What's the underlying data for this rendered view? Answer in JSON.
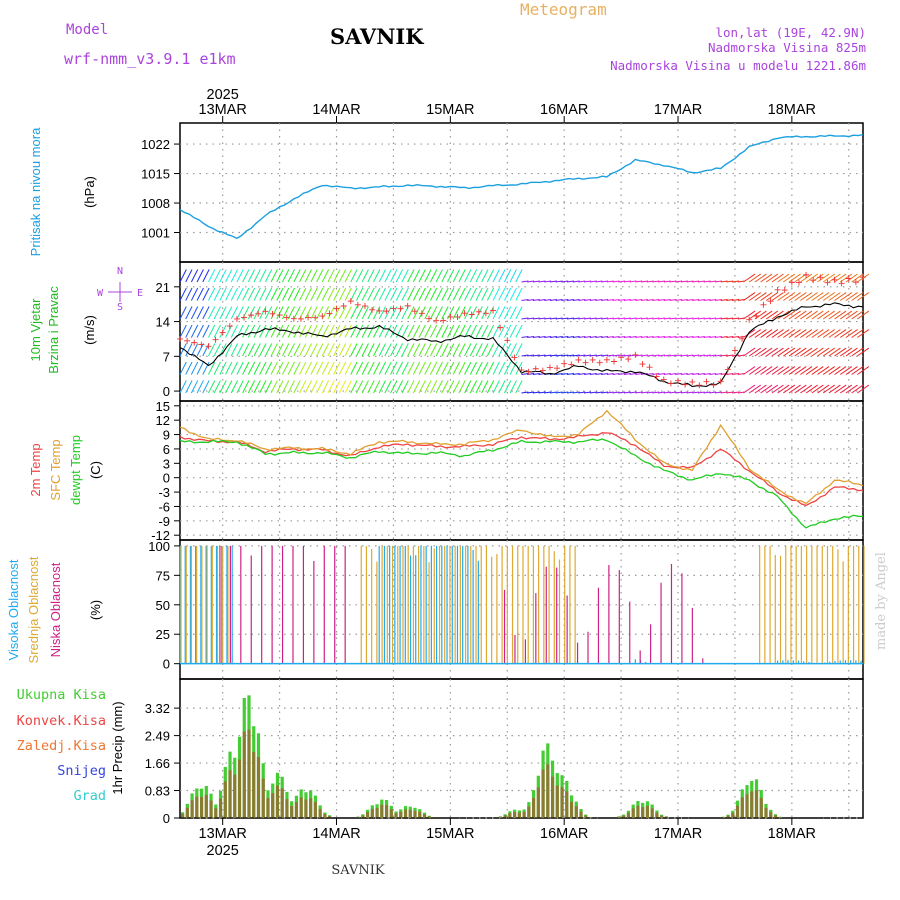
{
  "header": {
    "model_label": "Model",
    "model_name": "wrf-nmm_v3.9.1 e1km",
    "station": "SAVNIK",
    "meteogram": "Meteogram",
    "lonlat": "lon,lat (19E, 42.9N)",
    "altitude": "Nadmorska Visina 825m",
    "model_altitude": "Nadmorska Visina u modelu 1221.86m"
  },
  "footer": {
    "station": "SAVNIK",
    "watermark": "made by Angel"
  },
  "colors": {
    "pressure": "#1ca0e0",
    "wind_label": "#22bb22",
    "t2m": "#ee4444",
    "sfc": "#e0a030",
    "dewpt": "#22cc22",
    "high_cloud": "#22aaee",
    "mid_cloud": "#ddaa33",
    "low_cloud": "#cc2288",
    "total_precip": "#44cc33",
    "conv_precip": "#ee4444",
    "frz_precip": "#ee7733",
    "snow": "#3344dd",
    "hail": "#33cccc",
    "labels_purple": "#aa44dd",
    "meteogram_title": "#e8b060"
  },
  "chart_data": [
    {
      "type": "line",
      "panel": "pressure",
      "ylabel_1": "Pritisak na nivou mora",
      "ylabel_2": "(hPa)",
      "ylim": [
        994,
        1027
      ],
      "yticks": [
        "1001",
        "1008",
        "1015",
        "1022"
      ],
      "x_hours": [
        0,
        6,
        12,
        18,
        24,
        30,
        36,
        42,
        48,
        54,
        60,
        66,
        72,
        78,
        84,
        90,
        96,
        102,
        108,
        114,
        120,
        126,
        132,
        138,
        144
      ],
      "values": [
        1006.5,
        1002.5,
        999.5,
        1005,
        1009,
        1012.3,
        1011.5,
        1011.8,
        1012.2,
        1012.0,
        1011.6,
        1012.1,
        1012.5,
        1013.2,
        1013.8,
        1014.2,
        1018.2,
        1017.0,
        1015.2,
        1016.2,
        1021.3,
        1023.5,
        1023.8,
        1023.9,
        1024.1
      ],
      "xticks": [
        "13MAR",
        "14MAR",
        "15MAR",
        "16MAR",
        "17MAR",
        "18MAR"
      ],
      "year": "2025"
    },
    {
      "type": "line",
      "panel": "wind",
      "ylabel_1": "10m Vjetar",
      "ylabel_2": "Brzina i Pravac",
      "ylabel_3": "(m/s)",
      "compass": [
        "N",
        "S",
        "E",
        "W"
      ],
      "ylim": [
        -2,
        26
      ],
      "yticks": [
        "0",
        "7",
        "14",
        "21"
      ],
      "x_hours": [
        0,
        6,
        12,
        18,
        24,
        30,
        36,
        42,
        48,
        54,
        60,
        66,
        72,
        78,
        84,
        90,
        96,
        102,
        108,
        114,
        120,
        126,
        132,
        138,
        144
      ],
      "speed": [
        9,
        5,
        11,
        12.5,
        12,
        11,
        12.5,
        13,
        10.5,
        10,
        11,
        10.5,
        4,
        3.5,
        5,
        4,
        4,
        2,
        1,
        1.5,
        12,
        15,
        17,
        17.5,
        17
      ],
      "gust": [
        10.5,
        9,
        14.5,
        16,
        14.5,
        15,
        18,
        16,
        17,
        14,
        15.5,
        16,
        4,
        4.5,
        6,
        6,
        7,
        2,
        1.5,
        1.6,
        14,
        20,
        23,
        22,
        22.5
      ]
    },
    {
      "type": "line",
      "panel": "temperature",
      "ylabel_1": "2m Temp",
      "ylabel_2": "SFC Temp",
      "ylabel_3": "dewpt Temp",
      "ylabel_4": "(C)",
      "ylim": [
        -13,
        16
      ],
      "yticks": [
        "15",
        "12",
        "9",
        "6",
        "3",
        "0",
        "-3",
        "-6",
        "-9",
        "-12"
      ],
      "x_hours": [
        0,
        6,
        12,
        18,
        24,
        30,
        36,
        42,
        48,
        54,
        60,
        66,
        72,
        78,
        84,
        90,
        96,
        102,
        108,
        114,
        120,
        126,
        132,
        138,
        144
      ],
      "series": [
        {
          "name": "2m Temp",
          "values": [
            8.5,
            7.6,
            7.5,
            5.5,
            6,
            5.8,
            4.5,
            6.5,
            7,
            6.5,
            6.5,
            7,
            8.5,
            8,
            8.5,
            9.5,
            6.8,
            2.5,
            2,
            6,
            1.5,
            -3,
            -6,
            -2,
            -2.5
          ]
        },
        {
          "name": "SFC Temp",
          "values": [
            10.5,
            8,
            7.8,
            6,
            6.2,
            6,
            5,
            7.5,
            7.5,
            7,
            7,
            8,
            10,
            8.5,
            9,
            14,
            8,
            3,
            1.5,
            11,
            2,
            -2.5,
            -5.5,
            -0.5,
            -1.5
          ]
        },
        {
          "name": "dewpt Temp",
          "values": [
            7.5,
            7.5,
            7.5,
            5,
            5.2,
            5.2,
            4.2,
            5.5,
            5,
            5.2,
            4.6,
            5.8,
            7.5,
            7.5,
            7.5,
            8,
            4.5,
            1.5,
            -0.5,
            1,
            -0.5,
            -4,
            -10.5,
            -8.5,
            -8
          ]
        }
      ]
    },
    {
      "type": "bar",
      "panel": "clouds",
      "ylabel_1": "Visoka Oblacnost",
      "ylabel_2": "Srednja Oblacnost",
      "ylabel_3": "Niska Oblacnost",
      "ylabel_4": "(%)",
      "ylim": [
        0,
        100
      ],
      "yticks": [
        "0",
        "25",
        "50",
        "75",
        "100"
      ],
      "series": [
        {
          "name": "Visoka Oblacnost",
          "segments": [
            [
              0,
              12,
              100
            ],
            [
              42,
              64,
              100
            ],
            [
              96,
              100,
              5
            ],
            [
              126,
              144,
              3
            ]
          ]
        },
        {
          "name": "Srednja Oblacnost",
          "segments": [
            [
              0,
              10,
              100
            ],
            [
              38,
              84,
              100
            ],
            [
              122,
              144,
              100
            ]
          ]
        },
        {
          "name": "Niska Oblacnost",
          "segments": [
            [
              8,
              36,
              100
            ],
            [
              68,
              110,
              85
            ]
          ]
        }
      ]
    },
    {
      "type": "bar",
      "panel": "precip",
      "ylabel_1": "1hr Precip (mm)",
      "legend": [
        "Ukupna Kisa",
        "Konvek.Kisa",
        "Zaledj.Kisa",
        "Snijeg",
        "Grad"
      ],
      "ylim": [
        0,
        4.2
      ],
      "yticks": [
        "0",
        "0.83",
        "1.66",
        "2.49",
        "3.32"
      ],
      "xticks": [
        "13MAR",
        "14MAR",
        "15MAR",
        "16MAR",
        "17MAR",
        "18MAR"
      ],
      "year": "2025",
      "total_peaks": [
        [
          4,
          1.1
        ],
        [
          11,
          2.3
        ],
        [
          14,
          4.0
        ],
        [
          20,
          1.4
        ],
        [
          26,
          1.0
        ],
        [
          42,
          0.6
        ],
        [
          48,
          0.4
        ],
        [
          71,
          0.3
        ],
        [
          77,
          2.3
        ],
        [
          80,
          1.3
        ],
        [
          97,
          0.6
        ],
        [
          120,
          1.3
        ],
        [
          122,
          0.2
        ]
      ]
    }
  ]
}
